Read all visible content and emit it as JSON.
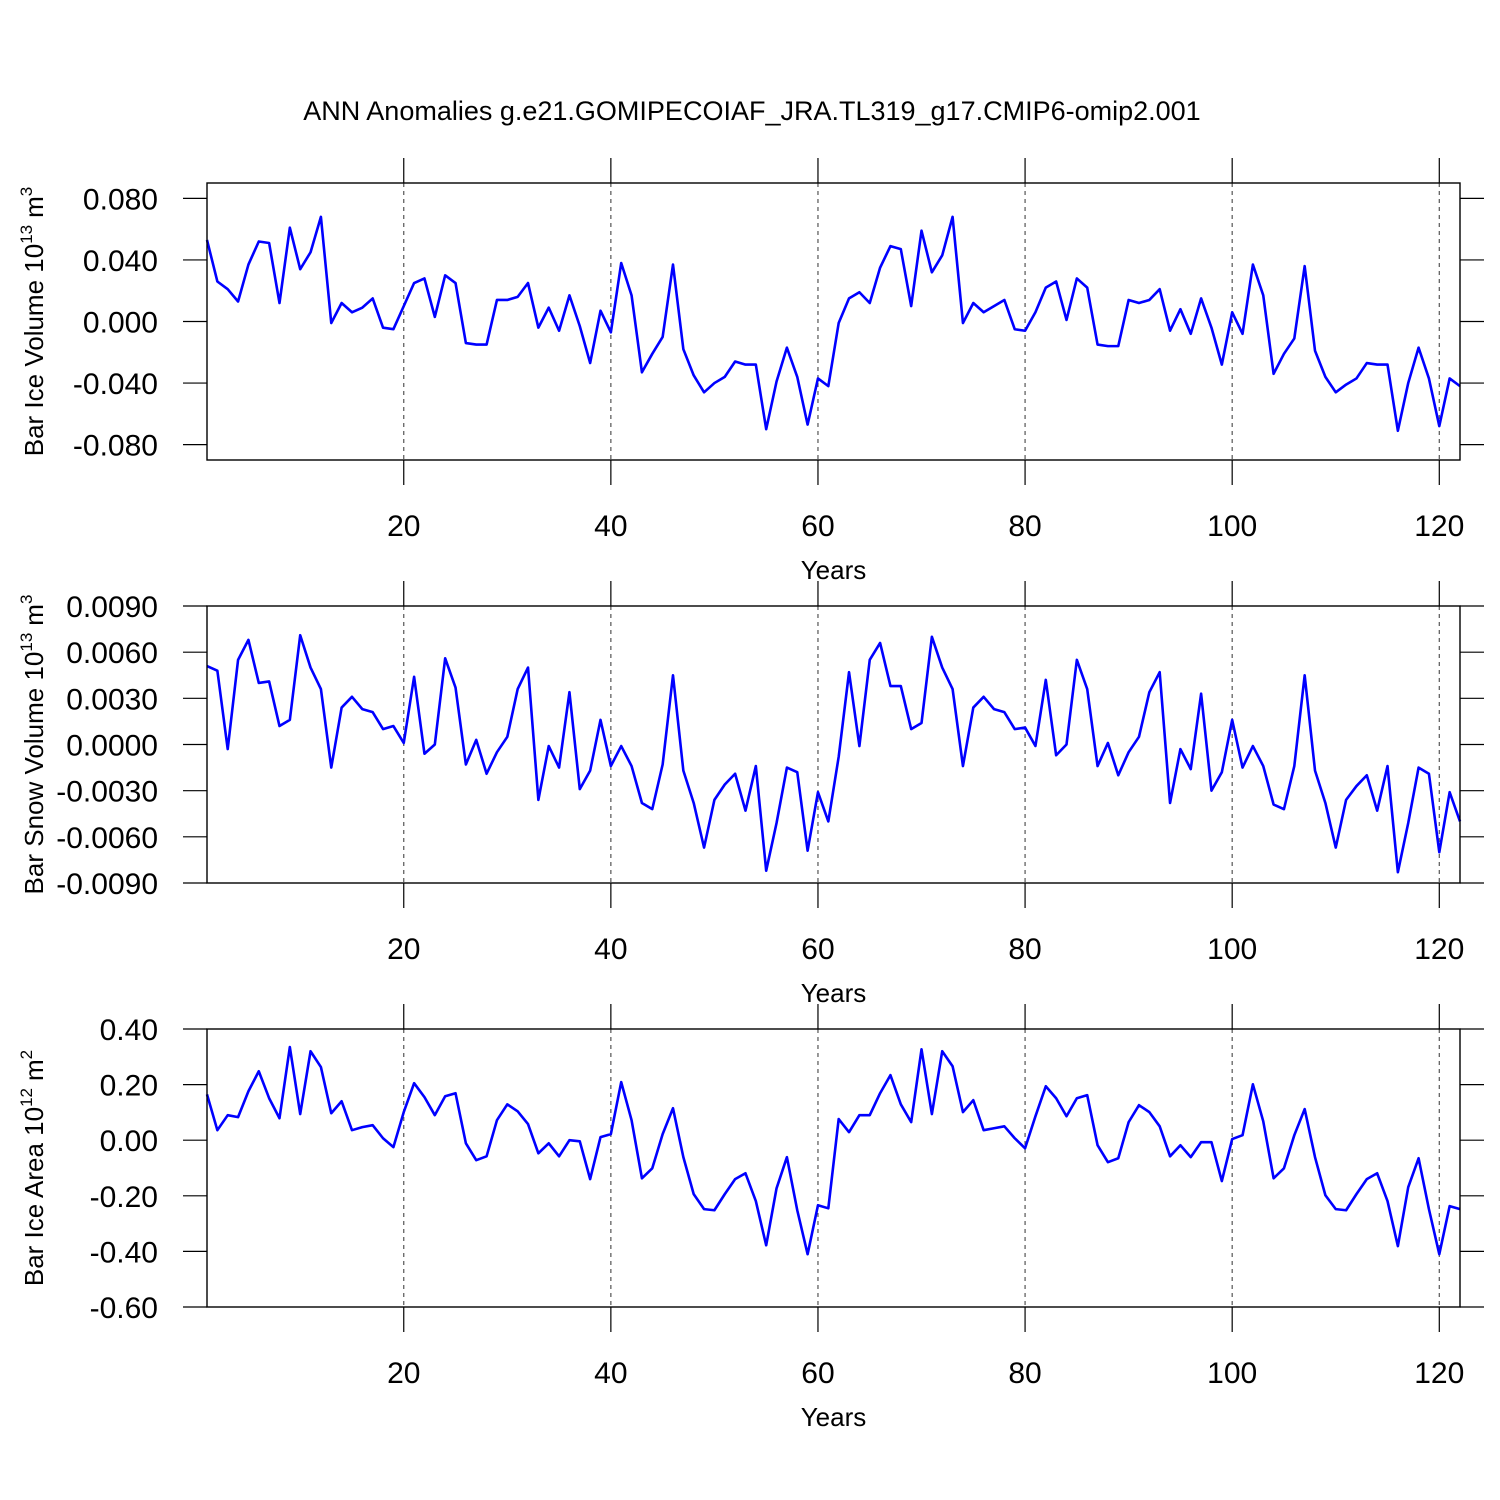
{
  "title": "ANN Anomalies g.e21.GOMIPECOIAF_JRA.TL319_g17.CMIP6-omip2.001",
  "chart_data": [
    {
      "type": "line",
      "ylabel": {
        "base": "Bar Ice Volume 10",
        "power": "13",
        "unit": "m",
        "unit_power": "3"
      },
      "xlabel": "Years",
      "x": [
        1,
        2,
        3,
        4,
        5,
        6,
        7,
        8,
        9,
        10,
        11,
        12,
        13,
        14,
        15,
        16,
        17,
        18,
        19,
        20,
        21,
        22,
        23,
        24,
        25,
        26,
        27,
        28,
        29,
        30,
        31,
        32,
        33,
        34,
        35,
        36,
        37,
        38,
        39,
        40,
        41,
        42,
        43,
        44,
        45,
        46,
        47,
        48,
        49,
        50,
        51,
        52,
        53,
        54,
        55,
        56,
        57,
        58,
        59,
        60,
        61,
        62,
        63,
        64,
        65,
        66,
        67,
        68,
        69,
        70,
        71,
        72,
        73,
        74,
        75,
        76,
        77,
        78,
        79,
        80,
        81,
        82,
        83,
        84,
        85,
        86,
        87,
        88,
        89,
        90,
        91,
        92,
        93,
        94,
        95,
        96,
        97,
        98,
        99,
        100,
        101,
        102,
        103,
        104,
        105,
        106,
        107,
        108,
        109,
        110,
        111,
        112,
        113,
        114,
        115,
        116,
        117,
        118,
        119,
        120,
        121,
        122
      ],
      "series": [
        {
          "color": "#0000ff",
          "values": [
            0.053,
            0.026,
            0.021,
            0.013,
            0.037,
            0.052,
            0.051,
            0.012,
            0.061,
            0.034,
            0.045,
            0.068,
            -0.001,
            0.012,
            0.006,
            0.009,
            0.015,
            -0.004,
            -0.005,
            0.01,
            0.025,
            0.028,
            0.003,
            0.03,
            0.025,
            -0.014,
            -0.015,
            -0.015,
            0.014,
            0.014,
            0.016,
            0.025,
            -0.004,
            0.009,
            -0.006,
            0.017,
            -0.003,
            -0.027,
            0.007,
            -0.007,
            0.038,
            0.017,
            -0.033,
            -0.021,
            -0.01,
            0.037,
            -0.018,
            -0.035,
            -0.046,
            -0.04,
            -0.036,
            -0.026,
            -0.028,
            -0.028,
            -0.07,
            -0.039,
            -0.017,
            -0.036,
            -0.067,
            -0.037,
            -0.042,
            -0.001,
            0.015,
            0.019,
            0.012,
            0.035,
            0.049,
            0.047,
            0.01,
            0.059,
            0.032,
            0.043,
            0.068,
            -0.001,
            0.012,
            0.006,
            0.01,
            0.014,
            -0.005,
            -0.006,
            0.006,
            0.022,
            0.026,
            0.001,
            0.028,
            0.022,
            -0.015,
            -0.016,
            -0.016,
            0.014,
            0.012,
            0.014,
            0.021,
            -0.006,
            0.008,
            -0.008,
            0.015,
            -0.004,
            -0.028,
            0.006,
            -0.008,
            0.037,
            0.017,
            -0.034,
            -0.021,
            -0.011,
            0.036,
            -0.019,
            -0.036,
            -0.046,
            -0.041,
            -0.037,
            -0.027,
            -0.028,
            -0.028,
            -0.071,
            -0.04,
            -0.017,
            -0.037,
            -0.068,
            -0.037,
            -0.042
          ]
        }
      ],
      "xlim": [
        1,
        122
      ],
      "xticks": [
        20,
        40,
        60,
        80,
        100,
        120
      ],
      "ylim": [
        -0.09,
        0.09
      ],
      "yticks": [
        {
          "value": -0.08,
          "label": "-0.080"
        },
        {
          "value": -0.04,
          "label": "-0.040"
        },
        {
          "value": 0,
          "label": "0.000"
        },
        {
          "value": 0.04,
          "label": "0.040"
        },
        {
          "value": 0.08,
          "label": "0.080"
        }
      ],
      "xgrid": true
    },
    {
      "type": "line",
      "ylabel": {
        "base": "Bar Snow Volume 10",
        "power": "13",
        "unit": "m",
        "unit_power": "3"
      },
      "xlabel": "Years",
      "x": [
        1,
        2,
        3,
        4,
        5,
        6,
        7,
        8,
        9,
        10,
        11,
        12,
        13,
        14,
        15,
        16,
        17,
        18,
        19,
        20,
        21,
        22,
        23,
        24,
        25,
        26,
        27,
        28,
        29,
        30,
        31,
        32,
        33,
        34,
        35,
        36,
        37,
        38,
        39,
        40,
        41,
        42,
        43,
        44,
        45,
        46,
        47,
        48,
        49,
        50,
        51,
        52,
        53,
        54,
        55,
        56,
        57,
        58,
        59,
        60,
        61,
        62,
        63,
        64,
        65,
        66,
        67,
        68,
        69,
        70,
        71,
        72,
        73,
        74,
        75,
        76,
        77,
        78,
        79,
        80,
        81,
        82,
        83,
        84,
        85,
        86,
        87,
        88,
        89,
        90,
        91,
        92,
        93,
        94,
        95,
        96,
        97,
        98,
        99,
        100,
        101,
        102,
        103,
        104,
        105,
        106,
        107,
        108,
        109,
        110,
        111,
        112,
        113,
        114,
        115,
        116,
        117,
        118,
        119,
        120,
        121,
        122
      ],
      "series": [
        {
          "color": "#0000ff",
          "values": [
            0.0051,
            0.0048,
            -0.0003,
            0.0055,
            0.0068,
            0.004,
            0.0041,
            0.0012,
            0.0016,
            0.0071,
            0.005,
            0.0036,
            -0.0015,
            0.0024,
            0.0031,
            0.0023,
            0.0021,
            0.001,
            0.0012,
            0.0001,
            0.0044,
            -0.0006,
            0.0,
            0.0056,
            0.0037,
            -0.0013,
            0.0003,
            -0.0019,
            -0.0005,
            0.0005,
            0.0036,
            0.005,
            -0.0036,
            -0.0001,
            -0.0015,
            0.0034,
            -0.0029,
            -0.0017,
            0.0016,
            -0.0014,
            -0.0001,
            -0.0014,
            -0.0038,
            -0.0042,
            -0.0013,
            0.0045,
            -0.0017,
            -0.0038,
            -0.0067,
            -0.0036,
            -0.0026,
            -0.0019,
            -0.0043,
            -0.0014,
            -0.0082,
            -0.0051,
            -0.0015,
            -0.0018,
            -0.0069,
            -0.0031,
            -0.005,
            -0.0008,
            0.0047,
            -0.0001,
            0.0055,
            0.0066,
            0.0038,
            0.0038,
            0.001,
            0.0014,
            0.007,
            0.005,
            0.0036,
            -0.0014,
            0.0024,
            0.0031,
            0.0023,
            0.0021,
            0.001,
            0.0011,
            -0.0001,
            0.0042,
            -0.0007,
            0.0,
            0.0055,
            0.0036,
            -0.0014,
            0.0001,
            -0.002,
            -0.0005,
            0.0005,
            0.0034,
            0.0047,
            -0.0038,
            -0.0003,
            -0.0016,
            0.0033,
            -0.003,
            -0.0018,
            0.0016,
            -0.0015,
            -0.0001,
            -0.0014,
            -0.0039,
            -0.0042,
            -0.0014,
            0.0045,
            -0.0017,
            -0.0038,
            -0.0067,
            -0.0036,
            -0.0027,
            -0.002,
            -0.0043,
            -0.0014,
            -0.0083,
            -0.0051,
            -0.0015,
            -0.0019,
            -0.007,
            -0.0031,
            -0.005
          ]
        }
      ],
      "xlim": [
        1,
        122
      ],
      "xticks": [
        20,
        40,
        60,
        80,
        100,
        120
      ],
      "ylim": [
        -0.009,
        0.009
      ],
      "yticks": [
        {
          "value": -0.009,
          "label": "-0.0090"
        },
        {
          "value": -0.006,
          "label": "-0.0060"
        },
        {
          "value": -0.003,
          "label": "-0.0030"
        },
        {
          "value": 0,
          "label": "0.0000"
        },
        {
          "value": 0.003,
          "label": "0.0030"
        },
        {
          "value": 0.006,
          "label": "0.0060"
        },
        {
          "value": 0.009,
          "label": "0.0090"
        }
      ],
      "xgrid": true
    },
    {
      "type": "line",
      "ylabel": {
        "base": "Bar Ice Area 10",
        "power": "12",
        "unit": "m",
        "unit_power": "2"
      },
      "xlabel": "Years",
      "x": [
        1,
        2,
        3,
        4,
        5,
        6,
        7,
        8,
        9,
        10,
        11,
        12,
        13,
        14,
        15,
        16,
        17,
        18,
        19,
        20,
        21,
        22,
        23,
        24,
        25,
        26,
        27,
        28,
        29,
        30,
        31,
        32,
        33,
        34,
        35,
        36,
        37,
        38,
        39,
        40,
        41,
        42,
        43,
        44,
        45,
        46,
        47,
        48,
        49,
        50,
        51,
        52,
        53,
        54,
        55,
        56,
        57,
        58,
        59,
        60,
        61,
        62,
        63,
        64,
        65,
        66,
        67,
        68,
        69,
        70,
        71,
        72,
        73,
        74,
        75,
        76,
        77,
        78,
        79,
        80,
        81,
        82,
        83,
        84,
        85,
        86,
        87,
        88,
        89,
        90,
        91,
        92,
        93,
        94,
        95,
        96,
        97,
        98,
        99,
        100,
        101,
        102,
        103,
        104,
        105,
        106,
        107,
        108,
        109,
        110,
        111,
        112,
        113,
        114,
        115,
        116,
        117,
        118,
        119,
        120,
        121,
        122
      ],
      "series": [
        {
          "color": "#0000ff",
          "values": [
            0.165,
            0.036,
            0.09,
            0.083,
            0.176,
            0.248,
            0.151,
            0.079,
            0.335,
            0.094,
            0.32,
            0.263,
            0.097,
            0.14,
            0.036,
            0.047,
            0.054,
            0.007,
            -0.025,
            0.101,
            0.205,
            0.155,
            0.09,
            0.158,
            0.169,
            -0.011,
            -0.072,
            -0.058,
            0.072,
            0.129,
            0.104,
            0.058,
            -0.047,
            -0.011,
            -0.058,
            0.0,
            -0.004,
            -0.14,
            0.011,
            0.022,
            0.209,
            0.072,
            -0.137,
            -0.101,
            0.022,
            0.115,
            -0.061,
            -0.194,
            -0.248,
            -0.252,
            -0.194,
            -0.14,
            -0.119,
            -0.219,
            -0.378,
            -0.173,
            -0.061,
            -0.252,
            -0.41,
            -0.234,
            -0.245,
            0.076,
            0.029,
            0.09,
            0.09,
            0.169,
            0.234,
            0.129,
            0.065,
            0.327,
            0.094,
            0.32,
            0.266,
            0.101,
            0.144,
            0.036,
            0.043,
            0.05,
            0.007,
            -0.029,
            0.086,
            0.194,
            0.151,
            0.086,
            0.151,
            0.162,
            -0.018,
            -0.079,
            -0.065,
            0.065,
            0.126,
            0.101,
            0.05,
            -0.058,
            -0.018,
            -0.061,
            -0.007,
            -0.007,
            -0.147,
            0.004,
            0.018,
            0.201,
            0.068,
            -0.137,
            -0.101,
            0.018,
            0.112,
            -0.061,
            -0.198,
            -0.248,
            -0.252,
            -0.194,
            -0.14,
            -0.119,
            -0.219,
            -0.381,
            -0.169,
            -0.065,
            -0.248,
            -0.41,
            -0.237,
            -0.248
          ]
        }
      ],
      "xlim": [
        1,
        122
      ],
      "xticks": [
        20,
        40,
        60,
        80,
        100,
        120
      ],
      "ylim": [
        -0.6,
        0.4
      ],
      "yticks": [
        {
          "value": -0.6,
          "label": "-0.60"
        },
        {
          "value": -0.4,
          "label": "-0.40"
        },
        {
          "value": -0.2,
          "label": "-0.20"
        },
        {
          "value": 0,
          "label": "0.00"
        },
        {
          "value": 0.2,
          "label": "0.20"
        },
        {
          "value": 0.4,
          "label": "0.40"
        }
      ],
      "xgrid": true
    }
  ]
}
